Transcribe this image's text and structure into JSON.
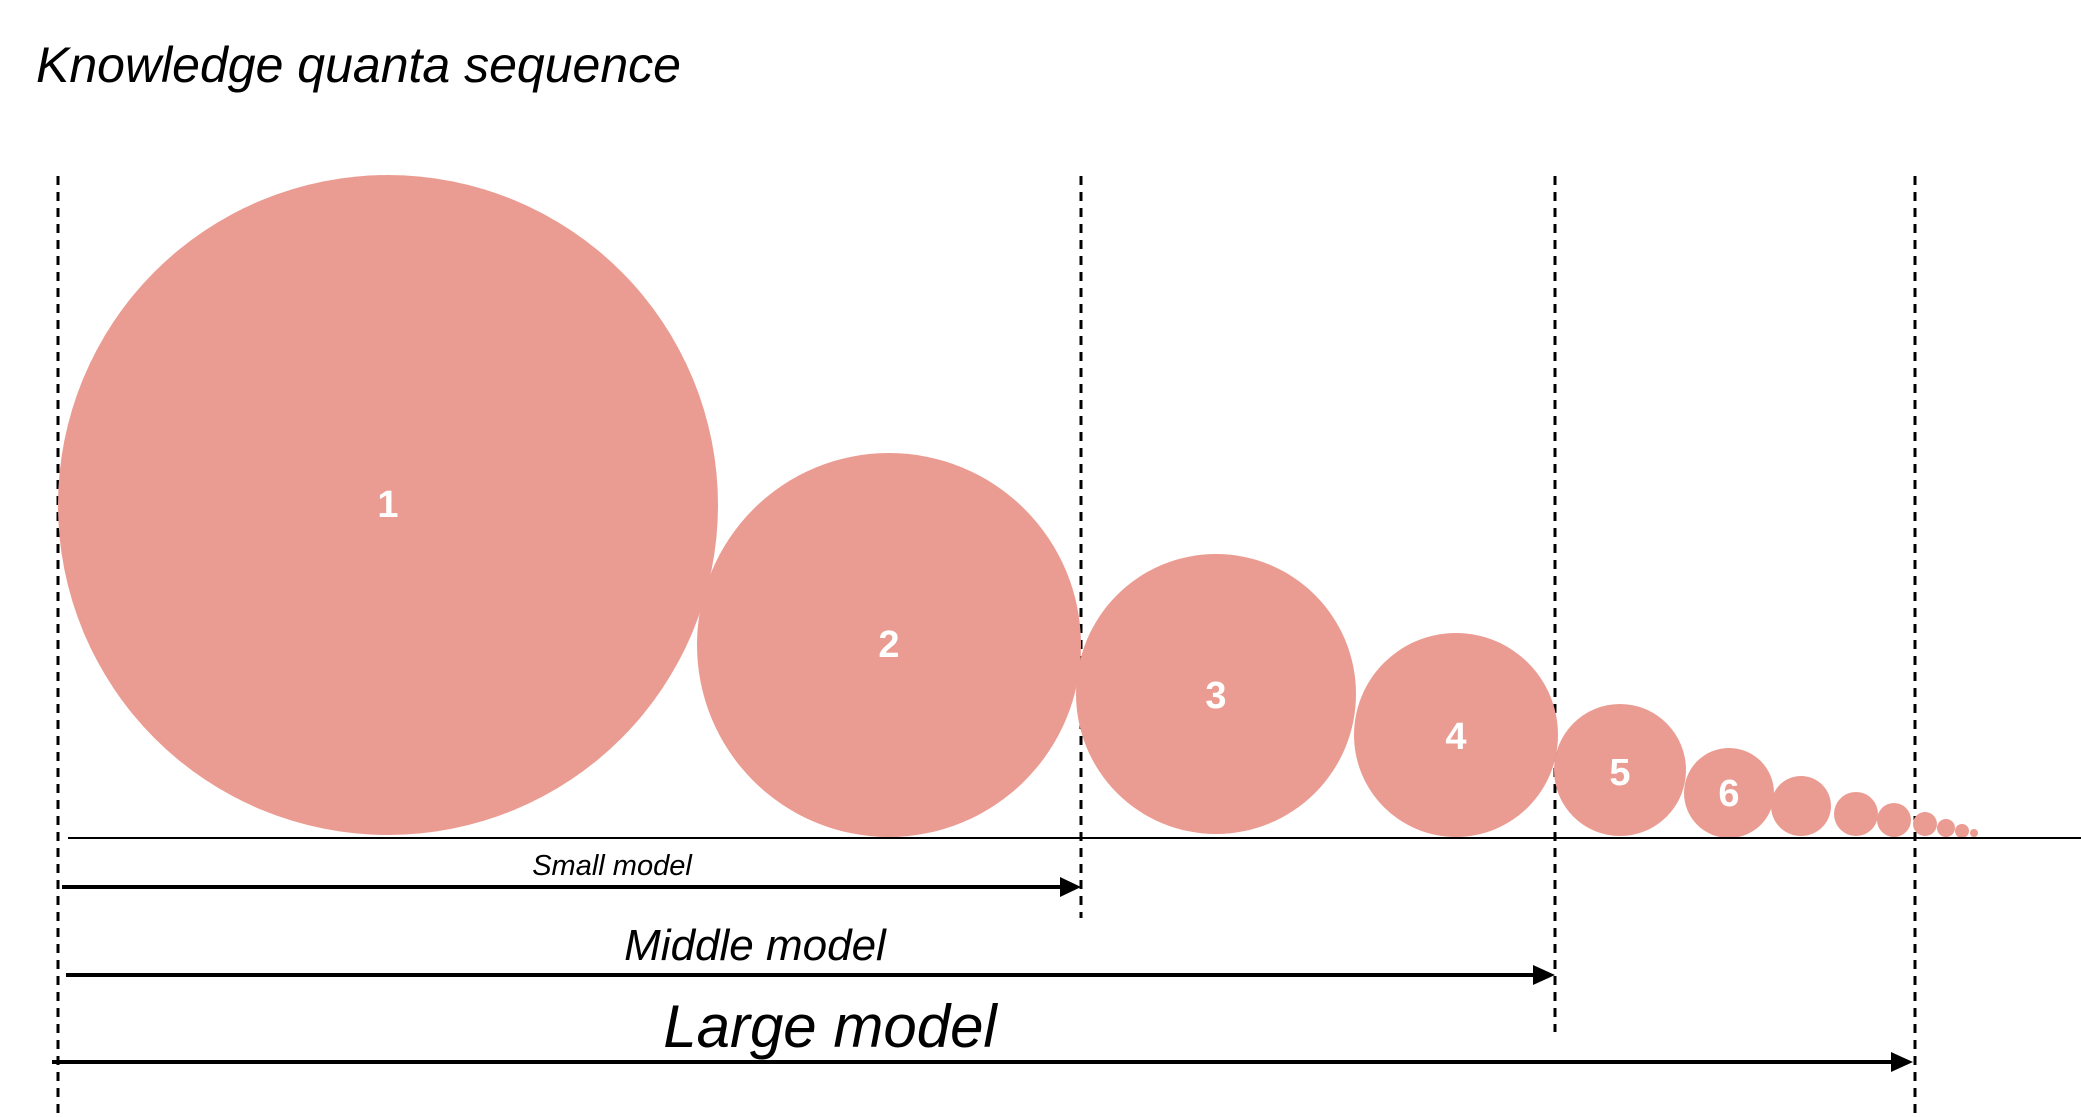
{
  "diagram": {
    "title": "Knowledge quanta sequence",
    "quantum_color": "#eb9c92",
    "quanta": [
      {
        "label": "1"
      },
      {
        "label": "2"
      },
      {
        "label": "3"
      },
      {
        "label": "4"
      },
      {
        "label": "5"
      },
      {
        "label": "6"
      },
      {
        "label": ""
      },
      {
        "label": ""
      },
      {
        "label": ""
      },
      {
        "label": ""
      },
      {
        "label": ""
      },
      {
        "label": ""
      },
      {
        "label": ""
      }
    ],
    "models": [
      {
        "name": "Small model"
      },
      {
        "name": "Middle model"
      },
      {
        "name": "Large model"
      }
    ]
  }
}
